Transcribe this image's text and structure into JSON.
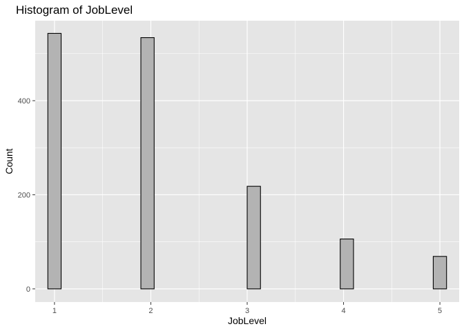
{
  "chart_data": {
    "type": "bar",
    "title": "Histogram of JobLevel",
    "xlabel": "JobLevel",
    "ylabel": "Count",
    "x_ticks": [
      1,
      2,
      3,
      4,
      5
    ],
    "y_ticks": [
      0,
      200,
      400
    ],
    "xlim": [
      0.8,
      5.2
    ],
    "ylim": [
      -28,
      570
    ],
    "grid": true,
    "bin_count": 30,
    "bins": [
      {
        "x": 1.0,
        "count": 543
      },
      {
        "x": 2.0,
        "count": 534
      },
      {
        "x": 3.0,
        "count": 218
      },
      {
        "x": 4.0,
        "count": 106
      },
      {
        "x": 5.0,
        "count": 69
      }
    ],
    "colors": {
      "panel": "#e5e5e5",
      "grid": "#ffffff",
      "bar_fill": "#b3b3b3",
      "bar_stroke": "#000000"
    }
  }
}
